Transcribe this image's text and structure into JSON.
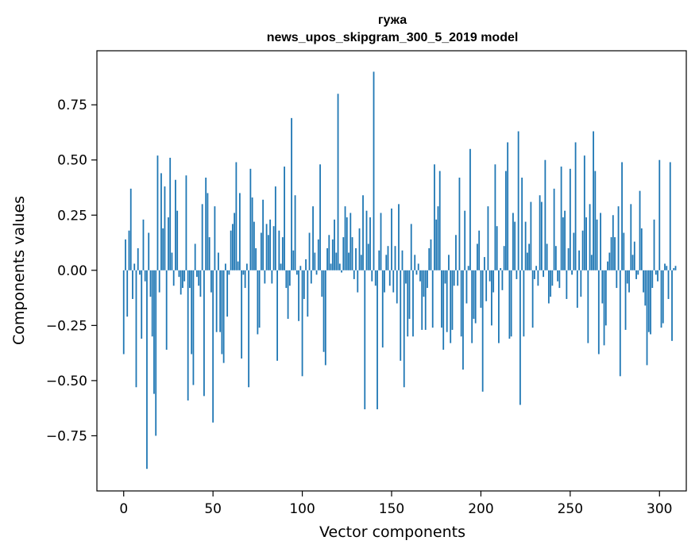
{
  "chart_data": {
    "type": "bar",
    "title": "гужа",
    "subtitle": "news_upos_skipgram_300_5_2019 model",
    "xlabel": "Vector components",
    "ylabel": "Components values",
    "xlim": [
      -15,
      315
    ],
    "ylim": [
      -1.0,
      0.995
    ],
    "xticks": [
      0,
      50,
      100,
      150,
      200,
      250,
      300
    ],
    "yticks": [
      -0.75,
      -0.5,
      -0.25,
      0.0,
      0.25,
      0.5,
      0.75
    ],
    "ytick_labels": [
      "−0.75",
      "−0.50",
      "−0.25",
      "0.00",
      "0.25",
      "0.50",
      "0.75"
    ],
    "bar_color": "#1f77b4",
    "grid": false,
    "values": [
      -0.38,
      0.14,
      -0.21,
      0.18,
      0.37,
      -0.13,
      0.03,
      -0.53,
      0.1,
      -0.02,
      -0.31,
      0.23,
      -0.05,
      -0.9,
      0.17,
      -0.12,
      -0.3,
      -0.56,
      -0.75,
      0.52,
      -0.1,
      0.44,
      0.19,
      0.38,
      -0.36,
      0.24,
      0.51,
      0.08,
      -0.07,
      0.41,
      0.27,
      -0.03,
      -0.11,
      -0.08,
      -0.05,
      0.43,
      -0.59,
      -0.08,
      -0.38,
      -0.52,
      0.12,
      -0.03,
      -0.07,
      -0.12,
      0.3,
      -0.57,
      0.42,
      0.35,
      0.15,
      -0.1,
      -0.69,
      0.29,
      -0.28,
      0.08,
      -0.28,
      -0.38,
      -0.42,
      0.03,
      -0.21,
      -0.02,
      0.18,
      0.21,
      0.26,
      0.49,
      0.04,
      0.35,
      -0.4,
      -0.02,
      -0.08,
      0.03,
      -0.53,
      0.46,
      0.33,
      0.22,
      0.1,
      -0.29,
      -0.26,
      0.17,
      0.32,
      -0.06,
      0.21,
      0.16,
      0.23,
      -0.06,
      0.2,
      0.38,
      -0.41,
      0.18,
      0.03,
      0.15,
      0.47,
      -0.08,
      -0.22,
      -0.07,
      0.69,
      0.09,
      0.34,
      -0.02,
      -0.23,
      0.02,
      -0.48,
      -0.13,
      0.05,
      -0.21,
      0.17,
      -0.06,
      0.29,
      0.08,
      -0.02,
      0.14,
      0.48,
      -0.12,
      -0.37,
      -0.43,
      0.1,
      0.16,
      0.03,
      0.14,
      0.23,
      0.08,
      0.8,
      0.03,
      -0.01,
      0.15,
      0.29,
      0.24,
      0.08,
      0.26,
      0.15,
      -0.04,
      0.1,
      -0.1,
      0.19,
      0.07,
      0.34,
      -0.63,
      0.27,
      0.12,
      0.24,
      -0.05,
      0.9,
      -0.07,
      -0.63,
      0.09,
      0.26,
      -0.35,
      -0.1,
      0.07,
      0.11,
      -0.07,
      0.28,
      -0.1,
      0.11,
      -0.15,
      0.3,
      -0.41,
      0.09,
      -0.53,
      -0.06,
      -0.3,
      -0.22,
      0.21,
      -0.3,
      0.07,
      -0.02,
      0.03,
      -0.05,
      -0.27,
      -0.12,
      -0.27,
      -0.08,
      0.1,
      0.14,
      -0.26,
      0.48,
      0.23,
      0.29,
      0.45,
      -0.26,
      -0.36,
      -0.06,
      -0.28,
      0.07,
      -0.33,
      -0.27,
      -0.07,
      0.16,
      -0.07,
      0.42,
      -0.3,
      -0.45,
      0.27,
      -0.15,
      0.02,
      0.55,
      -0.33,
      -0.22,
      -0.24,
      0.12,
      0.18,
      -0.17,
      -0.55,
      0.06,
      -0.14,
      0.29,
      -0.05,
      -0.25,
      -0.1,
      0.48,
      0.2,
      -0.33,
      0.01,
      -0.09,
      0.11,
      0.45,
      0.58,
      -0.31,
      -0.3,
      0.26,
      0.22,
      -0.04,
      0.63,
      -0.61,
      0.42,
      -0.3,
      0.22,
      0.08,
      0.12,
      0.31,
      -0.26,
      -0.04,
      0.02,
      -0.07,
      0.34,
      0.31,
      -0.03,
      0.5,
      0.12,
      -0.15,
      -0.12,
      -0.07,
      0.37,
      0.11,
      -0.05,
      -0.08,
      0.47,
      0.24,
      0.27,
      -0.13,
      0.1,
      0.46,
      -0.02,
      0.17,
      0.58,
      -0.17,
      0.09,
      -0.12,
      0.18,
      0.52,
      0.24,
      -0.33,
      0.3,
      0.07,
      0.63,
      0.45,
      0.23,
      -0.38,
      0.26,
      -0.15,
      -0.34,
      -0.25,
      0.04,
      0.08,
      0.15,
      0.25,
      0.15,
      -0.08,
      0.29,
      -0.48,
      0.49,
      0.17,
      -0.27,
      -0.06,
      -0.1,
      0.3,
      0.07,
      0.13,
      -0.04,
      -0.02,
      0.36,
      0.19,
      -0.1,
      -0.16,
      -0.43,
      -0.28,
      -0.29,
      -0.08,
      0.23,
      -0.02,
      -0.05,
      0.5,
      -0.26,
      -0.24,
      0.03,
      0.02,
      -0.13,
      0.49,
      -0.32,
      0.01,
      0.02
    ]
  }
}
